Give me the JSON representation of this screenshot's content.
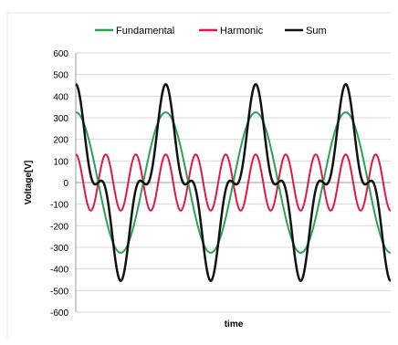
{
  "chart_data": {
    "type": "line",
    "xlabel": "time",
    "ylabel": "Voltage[V]",
    "ylim": [
      -600,
      600
    ],
    "yticks": [
      600,
      500,
      400,
      300,
      200,
      100,
      0,
      -100,
      -200,
      -300,
      -400,
      -500,
      -600
    ],
    "grid": "horizontal",
    "legend": "top",
    "periods_shown": 3.5,
    "series": [
      {
        "name": "Fundamental",
        "color": "#2ca05a",
        "amplitude": 325,
        "harmonic_order": 1
      },
      {
        "name": "Harmonic",
        "color": "#e0184a",
        "amplitude": 130,
        "harmonic_order": 3
      },
      {
        "name": "Sum",
        "color": "#111111",
        "amplitude": 455,
        "components": [
          "Fundamental",
          "Harmonic"
        ]
      }
    ]
  }
}
